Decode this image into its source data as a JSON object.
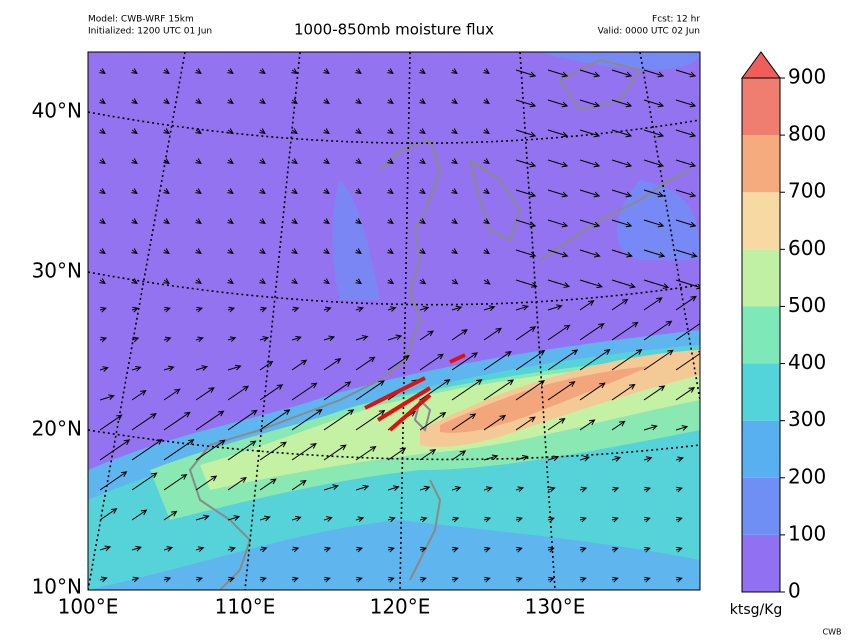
{
  "header": {
    "model": "Model: CWB-WRF 15km",
    "initialized": "Initialized: 1200 UTC 01 Jun",
    "title": "1000-850mb moisture flux",
    "forecast": "Fcst: 12 hr",
    "valid": "Valid: 0000 UTC 02 Jun"
  },
  "latitude_labels": [
    "40°N",
    "30°N",
    "20°N",
    "10°N"
  ],
  "longitude_labels": [
    "100°E",
    "110°E",
    "120°E",
    "130°E"
  ],
  "colorbar": {
    "ticks": [
      0,
      100,
      200,
      300,
      400,
      500,
      600,
      700,
      800,
      900
    ],
    "range": [
      0,
      900
    ],
    "colors": [
      "#9170f2",
      "#6f8ff5",
      "#58b0f0",
      "#52d4da",
      "#7ee8b8",
      "#bff0a4",
      "#f6d9a3",
      "#f5ab7d",
      "#f07e70"
    ],
    "extend_color": "#ee5f5c",
    "unit": "ktsg/Kg"
  },
  "credit": "CWB"
}
